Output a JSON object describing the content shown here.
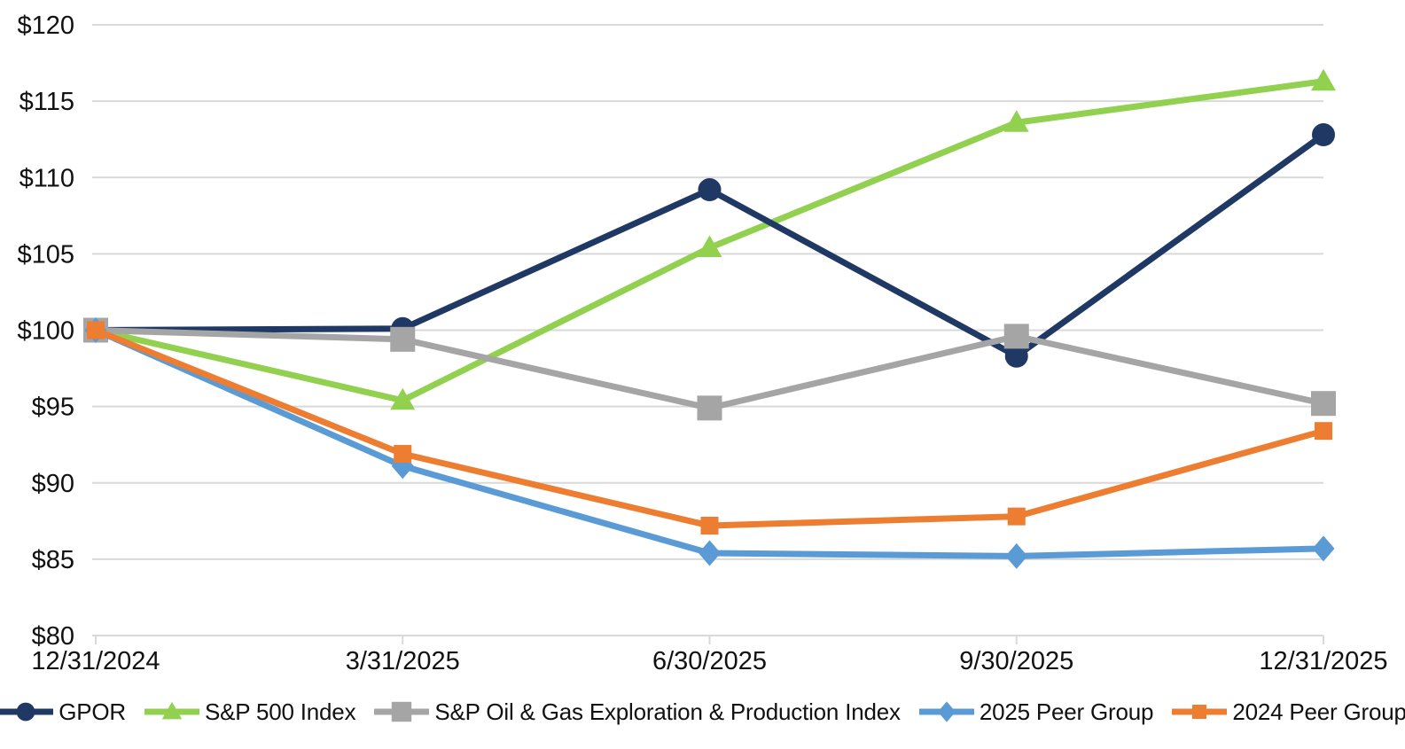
{
  "chart_data": {
    "type": "line",
    "title": "",
    "x_axis_label": "",
    "y_axis_label": "",
    "x_categories": [
      "12/31/2024",
      "3/31/2025",
      "6/30/2025",
      "9/30/2025",
      "12/31/2025"
    ],
    "y_tick_labels": [
      "$80",
      "$85",
      "$90",
      "$95",
      "$100",
      "$105",
      "$110",
      "$115",
      "$120"
    ],
    "y_tick_values": [
      80,
      85,
      90,
      95,
      100,
      105,
      110,
      115,
      120
    ],
    "ylim": [
      80,
      120
    ],
    "grid": "horizontal",
    "legend_position": "bottom",
    "series": [
      {
        "name": "GPOR",
        "color": "#1F3864",
        "marker": "circle",
        "values": [
          100,
          100.1,
          109.2,
          98.3,
          112.8
        ]
      },
      {
        "name": "S&P 500 Index",
        "color": "#92D050",
        "marker": "triangle",
        "values": [
          100,
          95.4,
          105.4,
          113.6,
          116.3
        ]
      },
      {
        "name": "S&P Oil & Gas Exploration & Production Index",
        "color": "#A5A5A5",
        "marker": "square",
        "values": [
          100,
          99.4,
          94.9,
          99.6,
          95.2
        ]
      },
      {
        "name": "2025 Peer Group",
        "color": "#5B9BD5",
        "marker": "diamond",
        "values": [
          100,
          91.1,
          85.4,
          85.2,
          85.7
        ]
      },
      {
        "name": "2024 Peer Group",
        "color": "#ED7D31",
        "marker": "square-small",
        "values": [
          100,
          91.9,
          87.2,
          87.8,
          93.4
        ]
      }
    ],
    "style": {
      "gridline_color": "#D9D9D9",
      "axis_line_color": "#D9D9D9",
      "text_color": "#111111",
      "background_color": "#FFFFFF"
    }
  }
}
